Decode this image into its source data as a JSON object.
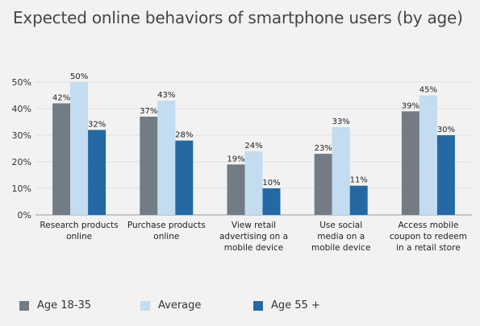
{
  "chart_data": {
    "type": "bar",
    "title": "Expected online behaviors of smartphone users (by age)",
    "categories": [
      [
        "Research products",
        "online"
      ],
      [
        "Purchase products",
        "online"
      ],
      [
        "View retail",
        "advertising on a",
        "mobile device"
      ],
      [
        "Use social",
        "media on a",
        "mobile device"
      ],
      [
        "Access mobile",
        "coupon to redeem",
        "in a retail store"
      ]
    ],
    "series": [
      {
        "name": "Age 18-35",
        "color": "#737b84",
        "values": [
          42,
          37,
          19,
          23,
          39
        ],
        "labels": [
          "42%",
          "37%",
          "19%",
          "23%",
          "39%"
        ]
      },
      {
        "name": "Average",
        "color": "#c3dcef",
        "values": [
          50,
          43,
          24,
          33,
          45
        ],
        "labels": [
          "50%",
          "43%",
          "24%",
          "33%",
          "45%"
        ]
      },
      {
        "name": "Age 55 +",
        "color": "#2469a3",
        "values": [
          32,
          28,
          10,
          11,
          30
        ],
        "labels": [
          "32%",
          "28%",
          "10%",
          "11%",
          "30%"
        ]
      }
    ],
    "ylim": [
      0,
      50
    ],
    "yticks": [
      "0%",
      "10%",
      "20%",
      "30%",
      "40%",
      "50%"
    ],
    "grid": true,
    "legend_position": "bottom"
  }
}
